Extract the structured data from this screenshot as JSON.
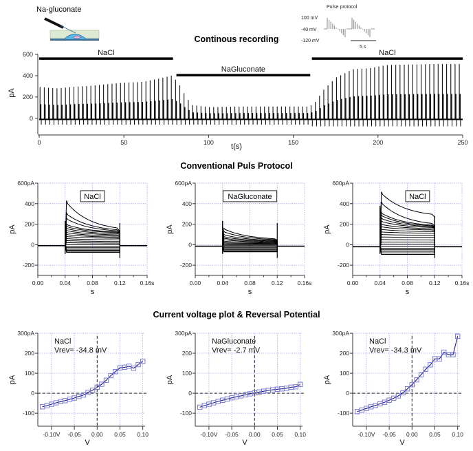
{
  "header": {
    "pipette_label": "Na-gluconate",
    "pulse_protocol": {
      "title": "Pulse protocol",
      "levels": [
        "100 mV",
        "-40 mV",
        "-120 mV"
      ],
      "scale_bar": "5 s"
    }
  },
  "sections": {
    "continuous_title": "Continous recording",
    "pulse_title": "Conventional Puls Protocol",
    "iv_title": "Current voltage plot & Reversal Potential"
  },
  "chart_data": [
    {
      "id": "continuous",
      "type": "line",
      "title": "Continous recording",
      "xlabel": "t(s)",
      "ylabel": "pA",
      "xlim": [
        0,
        250
      ],
      "ylim": [
        -150,
        600
      ],
      "xticks": [
        "0",
        "50",
        "100",
        "150",
        "200",
        "250"
      ],
      "yticks": [
        "0",
        "200",
        "400",
        "600"
      ],
      "ytick_values": [
        0,
        200,
        400,
        600
      ],
      "xtick_values": [
        0,
        50,
        100,
        150,
        200,
        250
      ],
      "solution_bars": [
        {
          "label": "NaCl",
          "start": 0,
          "end": 79
        },
        {
          "label": "NaGluconate",
          "start": 81,
          "end": 160
        },
        {
          "label": "NaCl",
          "start": 161,
          "end": 250
        }
      ],
      "pulse_interval_s": 2.5,
      "peak_envelope": {
        "t": [
          0,
          10,
          20,
          30,
          40,
          50,
          60,
          70,
          78,
          82,
          86,
          90,
          100,
          120,
          140,
          158,
          162,
          168,
          175,
          185,
          195,
          205,
          220,
          235,
          250
        ],
        "pA": [
          295,
          280,
          295,
          305,
          320,
          335,
          340,
          370,
          400,
          340,
          220,
          125,
          105,
          110,
          110,
          110,
          130,
          270,
          380,
          460,
          470,
          500,
          505,
          510,
          510
        ]
      },
      "trough_envelope_pA": -60
    },
    {
      "id": "pulse-nacl-1",
      "type": "line",
      "label": "NaCl",
      "xlabel": "s",
      "ylabel": "pA",
      "xlim": [
        0,
        0.16
      ],
      "ylim": [
        -300,
        600
      ],
      "xticks": [
        "0.00",
        "0.04",
        "0.08",
        "0.12",
        "0.16s"
      ],
      "xtick_values": [
        0,
        0.04,
        0.08,
        0.12,
        0.16
      ],
      "yticks": [
        "-200",
        "0",
        "200",
        "400",
        "600pA"
      ],
      "ytick_values": [
        -200,
        0,
        200,
        400,
        600
      ],
      "pulse_window": [
        0.04,
        0.12
      ],
      "baseline_pA": -10,
      "sweeps": [
        {
          "peak": 430,
          "end": 130
        },
        {
          "peak": 310,
          "end": 125
        },
        {
          "peak": 260,
          "end": 120
        },
        {
          "peak": 200,
          "end": 115
        },
        {
          "peak": 180,
          "end": 110
        },
        {
          "peak": 160,
          "end": 100
        },
        {
          "peak": 140,
          "end": 90
        },
        {
          "peak": 120,
          "end": 80
        },
        {
          "peak": 100,
          "end": 70
        },
        {
          "peak": 80,
          "end": 60
        },
        {
          "peak": 60,
          "end": 45
        },
        {
          "peak": 40,
          "end": 30
        },
        {
          "peak": 20,
          "end": 15
        },
        {
          "peak": 0,
          "end": 0
        },
        {
          "peak": -15,
          "end": -15
        },
        {
          "peak": -30,
          "end": -30
        },
        {
          "peak": -45,
          "end": -45
        },
        {
          "peak": -55,
          "end": -55
        },
        {
          "peak": -65,
          "end": -65
        },
        {
          "peak": -75,
          "end": -75
        }
      ]
    },
    {
      "id": "pulse-nagluconate",
      "type": "line",
      "label": "NaGluconate",
      "xlabel": "s",
      "ylabel": "pA",
      "xlim": [
        0,
        0.16
      ],
      "ylim": [
        -300,
        600
      ],
      "xticks": [
        "0.00",
        "0.04",
        "0.08",
        "0.12",
        "0.16s"
      ],
      "xtick_values": [
        0,
        0.04,
        0.08,
        0.12,
        0.16
      ],
      "yticks": [
        "-200",
        "0",
        "200",
        "400",
        "600pA"
      ],
      "ytick_values": [
        -200,
        0,
        200,
        400,
        600
      ],
      "pulse_window": [
        0.04,
        0.12
      ],
      "baseline_pA": -15,
      "sweeps": [
        {
          "peak": 160,
          "end": 45
        },
        {
          "peak": 130,
          "end": 40
        },
        {
          "peak": 100,
          "end": 35
        },
        {
          "peak": 80,
          "end": 30
        },
        {
          "peak": 65,
          "end": 25
        },
        {
          "peak": 50,
          "end": 20
        },
        {
          "peak": 35,
          "end": 15
        },
        {
          "peak": 20,
          "end": 10
        },
        {
          "peak": 10,
          "end": 5
        },
        {
          "peak": 0,
          "end": 0
        },
        {
          "peak": -10,
          "end": -10
        },
        {
          "peak": -20,
          "end": -20
        },
        {
          "peak": -30,
          "end": -30
        },
        {
          "peak": -40,
          "end": -40
        },
        {
          "peak": -50,
          "end": -50
        },
        {
          "peak": -60,
          "end": -60
        },
        {
          "peak": -65,
          "end": -65
        },
        {
          "peak": -70,
          "end": -70
        }
      ]
    },
    {
      "id": "pulse-nacl-2",
      "type": "line",
      "label": "NaCl",
      "xlabel": "s",
      "ylabel": "pA",
      "xlim": [
        0,
        0.16
      ],
      "ylim": [
        -300,
        600
      ],
      "xticks": [
        "0.00",
        "0.04",
        "0.08",
        "0.12",
        "0.16s"
      ],
      "xtick_values": [
        0,
        0.04,
        0.08,
        0.12,
        0.16
      ],
      "yticks": [
        "-200",
        "0",
        "200",
        "400",
        "600pA"
      ],
      "ytick_values": [
        -200,
        0,
        200,
        400,
        600
      ],
      "pulse_window": [
        0.04,
        0.12
      ],
      "baseline_pA": -20,
      "sweeps": [
        {
          "peak": 515,
          "end": 270
        },
        {
          "peak": 420,
          "end": 180
        },
        {
          "peak": 315,
          "end": 175
        },
        {
          "peak": 290,
          "end": 170
        },
        {
          "peak": 260,
          "end": 165
        },
        {
          "peak": 230,
          "end": 160
        },
        {
          "peak": 200,
          "end": 150
        },
        {
          "peak": 175,
          "end": 140
        },
        {
          "peak": 150,
          "end": 125
        },
        {
          "peak": 125,
          "end": 110
        },
        {
          "peak": 100,
          "end": 90
        },
        {
          "peak": 75,
          "end": 70
        },
        {
          "peak": 50,
          "end": 45
        },
        {
          "peak": 25,
          "end": 25
        },
        {
          "peak": 5,
          "end": 5
        },
        {
          "peak": -15,
          "end": -15
        },
        {
          "peak": -35,
          "end": -35
        },
        {
          "peak": -50,
          "end": -50
        },
        {
          "peak": -65,
          "end": -65
        },
        {
          "peak": -80,
          "end": -80
        },
        {
          "peak": -95,
          "end": -95
        }
      ]
    },
    {
      "id": "iv-nacl-1",
      "type": "line",
      "annotation": [
        "NaCl",
        "Vrev= -34.8 mV"
      ],
      "xlabel": "V",
      "ylabel": "pA",
      "xlim": [
        -0.13,
        0.105
      ],
      "ylim": [
        -165,
        300
      ],
      "xticks": [
        "-0.10V",
        "-0.05",
        "0.00",
        "0.05",
        "0.10"
      ],
      "xtick_values": [
        -0.1,
        -0.05,
        0,
        0.05,
        0.1
      ],
      "yticks": [
        "-100",
        "0",
        "100",
        "200",
        "300pA"
      ],
      "ytick_values": [
        -100,
        0,
        100,
        200,
        300
      ],
      "series": [
        {
          "name": "NaCl",
          "x": [
            -0.12,
            -0.11,
            -0.1,
            -0.09,
            -0.08,
            -0.07,
            -0.06,
            -0.05,
            -0.04,
            -0.03,
            -0.02,
            -0.01,
            0.0,
            0.01,
            0.02,
            0.03,
            0.04,
            0.05,
            0.06,
            0.07,
            0.08,
            0.09,
            0.1
          ],
          "y": [
            -68,
            -62,
            -55,
            -48,
            -42,
            -37,
            -30,
            -24,
            -16,
            -9,
            4,
            15,
            30,
            45,
            65,
            88,
            108,
            127,
            130,
            135,
            125,
            143,
            160
          ]
        }
      ]
    },
    {
      "id": "iv-nagluconate",
      "type": "line",
      "annotation": [
        "NaGluconate",
        "Vrev= -2.7 mV"
      ],
      "xlabel": "V",
      "ylabel": "pA",
      "xlim": [
        -0.13,
        0.105
      ],
      "ylim": [
        -165,
        300
      ],
      "xticks": [
        "-0.10V",
        "-0.05",
        "0.00",
        "0.05",
        "0.10"
      ],
      "xtick_values": [
        -0.1,
        -0.05,
        0,
        0.05,
        0.1
      ],
      "yticks": [
        "-100",
        "0",
        "100",
        "200",
        "300pA"
      ],
      "ytick_values": [
        -100,
        0,
        100,
        200,
        300
      ],
      "series": [
        {
          "name": "NaGluconate",
          "x": [
            -0.12,
            -0.11,
            -0.1,
            -0.09,
            -0.08,
            -0.07,
            -0.06,
            -0.05,
            -0.04,
            -0.03,
            -0.02,
            -0.01,
            0.0,
            0.01,
            0.02,
            0.03,
            0.04,
            0.05,
            0.06,
            0.07,
            0.08,
            0.09,
            0.1
          ],
          "y": [
            -70,
            -62,
            -55,
            -48,
            -41,
            -35,
            -29,
            -23,
            -18,
            -13,
            -8,
            -3,
            2,
            6,
            10,
            14,
            17,
            20,
            22,
            25,
            30,
            32,
            44
          ]
        }
      ]
    },
    {
      "id": "iv-nacl-2",
      "type": "line",
      "annotation": [
        "NaCl",
        "Vrev= -34.3 mV"
      ],
      "xlabel": "V",
      "ylabel": "pA",
      "xlim": [
        -0.13,
        0.105
      ],
      "ylim": [
        -165,
        300
      ],
      "xticks": [
        "-0.10V",
        "-0.05",
        "0.00",
        "0.05",
        "0.10"
      ],
      "xtick_values": [
        -0.1,
        -0.05,
        0,
        0.05,
        0.1
      ],
      "yticks": [
        "-100",
        "0",
        "100",
        "200",
        "300pA"
      ],
      "ytick_values": [
        -100,
        0,
        100,
        200,
        300
      ],
      "series": [
        {
          "name": "NaCl",
          "x": [
            -0.12,
            -0.11,
            -0.1,
            -0.09,
            -0.08,
            -0.07,
            -0.06,
            -0.05,
            -0.04,
            -0.03,
            -0.02,
            -0.01,
            0.0,
            0.01,
            0.02,
            0.03,
            0.04,
            0.05,
            0.06,
            0.07,
            0.08,
            0.09,
            0.1
          ],
          "y": [
            -92,
            -84,
            -76,
            -68,
            -61,
            -53,
            -45,
            -35,
            -25,
            -13,
            2,
            22,
            43,
            67,
            93,
            120,
            142,
            172,
            172,
            205,
            193,
            193,
            285
          ]
        }
      ]
    }
  ]
}
